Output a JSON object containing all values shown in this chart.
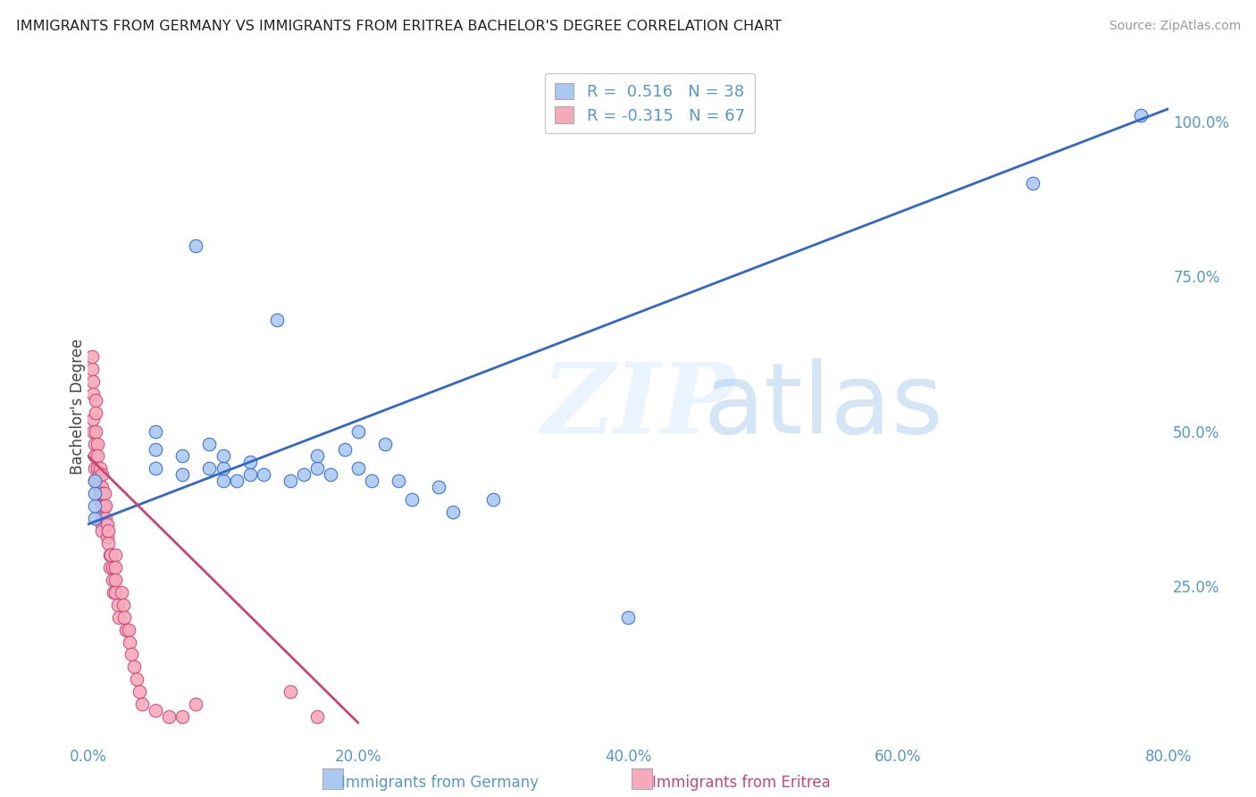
{
  "title": "IMMIGRANTS FROM GERMANY VS IMMIGRANTS FROM ERITREA BACHELOR'S DEGREE CORRELATION CHART",
  "source": "Source: ZipAtlas.com",
  "xlabel_blue": "Immigrants from Germany",
  "xlabel_pink": "Immigrants from Eritrea",
  "ylabel": "Bachelor's Degree",
  "watermark_zip": "ZIP",
  "watermark_atlas": "atlas",
  "blue_R": 0.516,
  "blue_N": 38,
  "pink_R": -0.315,
  "pink_N": 67,
  "xlim": [
    0.0,
    0.8
  ],
  "ylim": [
    0.0,
    1.08
  ],
  "yticks": [
    0.0,
    0.25,
    0.5,
    0.75,
    1.0
  ],
  "ytick_labels": [
    "",
    "25.0%",
    "50.0%",
    "75.0%",
    "100.0%"
  ],
  "xticks": [
    0.0,
    0.2,
    0.4,
    0.6,
    0.8
  ],
  "xtick_labels": [
    "0.0%",
    "20.0%",
    "40.0%",
    "60.0%",
    "80.0%"
  ],
  "blue_color": "#aac9f0",
  "pink_color": "#f5aabb",
  "blue_line_color": "#3366cc",
  "pink_line_color": "#cc4477",
  "axis_color": "#5599cc",
  "background_color": "#ffffff",
  "blue_scatter_x": [
    0.005,
    0.005,
    0.005,
    0.005,
    0.05,
    0.05,
    0.05,
    0.07,
    0.07,
    0.08,
    0.09,
    0.09,
    0.1,
    0.1,
    0.1,
    0.11,
    0.12,
    0.12,
    0.13,
    0.14,
    0.15,
    0.16,
    0.17,
    0.17,
    0.18,
    0.19,
    0.2,
    0.2,
    0.21,
    0.22,
    0.23,
    0.24,
    0.26,
    0.27,
    0.3,
    0.4,
    0.7,
    0.78
  ],
  "blue_scatter_y": [
    0.36,
    0.38,
    0.4,
    0.42,
    0.44,
    0.47,
    0.5,
    0.43,
    0.46,
    0.8,
    0.44,
    0.48,
    0.42,
    0.44,
    0.46,
    0.42,
    0.43,
    0.45,
    0.43,
    0.68,
    0.42,
    0.43,
    0.44,
    0.46,
    0.43,
    0.47,
    0.5,
    0.44,
    0.42,
    0.48,
    0.42,
    0.39,
    0.41,
    0.37,
    0.39,
    0.2,
    0.9,
    1.01
  ],
  "pink_scatter_x": [
    0.003,
    0.003,
    0.004,
    0.004,
    0.004,
    0.004,
    0.005,
    0.005,
    0.005,
    0.005,
    0.006,
    0.006,
    0.006,
    0.007,
    0.007,
    0.007,
    0.007,
    0.008,
    0.008,
    0.008,
    0.009,
    0.009,
    0.01,
    0.01,
    0.01,
    0.01,
    0.01,
    0.01,
    0.01,
    0.01,
    0.012,
    0.012,
    0.013,
    0.013,
    0.014,
    0.014,
    0.015,
    0.015,
    0.016,
    0.016,
    0.017,
    0.018,
    0.018,
    0.019,
    0.02,
    0.02,
    0.02,
    0.02,
    0.022,
    0.023,
    0.025,
    0.026,
    0.027,
    0.028,
    0.03,
    0.031,
    0.032,
    0.034,
    0.036,
    0.038,
    0.04,
    0.05,
    0.06,
    0.07,
    0.08,
    0.15,
    0.17
  ],
  "pink_scatter_y": [
    0.6,
    0.62,
    0.58,
    0.56,
    0.5,
    0.52,
    0.48,
    0.46,
    0.44,
    0.42,
    0.55,
    0.53,
    0.5,
    0.48,
    0.46,
    0.44,
    0.42,
    0.43,
    0.41,
    0.39,
    0.44,
    0.4,
    0.43,
    0.41,
    0.4,
    0.38,
    0.37,
    0.36,
    0.35,
    0.34,
    0.4,
    0.38,
    0.38,
    0.36,
    0.35,
    0.33,
    0.34,
    0.32,
    0.3,
    0.28,
    0.3,
    0.28,
    0.26,
    0.24,
    0.3,
    0.28,
    0.26,
    0.24,
    0.22,
    0.2,
    0.24,
    0.22,
    0.2,
    0.18,
    0.18,
    0.16,
    0.14,
    0.12,
    0.1,
    0.08,
    0.06,
    0.05,
    0.04,
    0.04,
    0.06,
    0.08,
    0.04
  ],
  "blue_trend": [
    0.0,
    0.8,
    0.35,
    1.02
  ],
  "pink_trend": [
    0.0,
    0.2,
    0.46,
    0.03
  ]
}
